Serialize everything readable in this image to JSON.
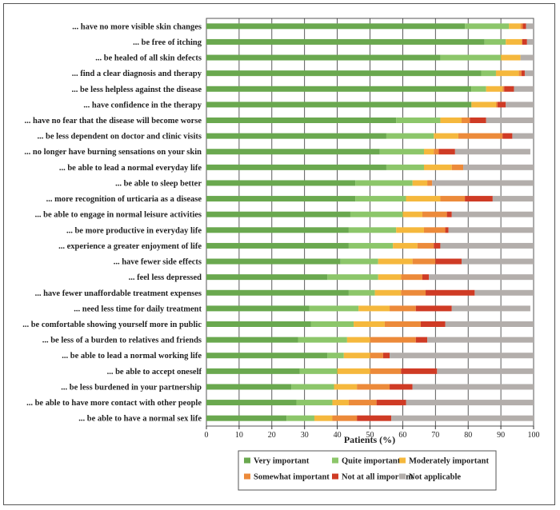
{
  "chart_data": {
    "type": "bar",
    "orientation": "horizontal",
    "stacked": true,
    "xlabel": "Patients (%)",
    "xlim": [
      0,
      100
    ],
    "xticks": [
      0,
      10,
      20,
      30,
      40,
      50,
      60,
      70,
      80,
      90,
      100
    ],
    "grid": "vertical",
    "legend_position": "bottom",
    "categories": [
      "... have no more visible skin changes",
      "... be free of itching",
      "... be healed of all skin defects",
      "... find a clear diagnosis and therapy",
      "... be less helpless against the disease",
      "... have confidence in the therapy",
      "... have no fear that the disease will become worse",
      "... be less dependent on doctor and clinic visits",
      "... no longer have burning sensations on your skin",
      "... be able to lead a normal everyday life",
      "... be able to sleep better",
      "... more recognition of urticaria as a disease",
      "... be able to engage in normal leisure activities",
      "... be more productive in everyday life",
      "... experience a greater enjoyment of life",
      "... have fewer side effects",
      "... feel less depressed",
      "... have fewer unaffordable treatment expenses",
      "... need less time for daily treatment",
      "... be comfortable showing yourself more in public",
      "... be less of a burden to relatives and friends",
      "... be able to lead a normal working life",
      "... be able to accept oneself",
      "... be less burdened in your partnership",
      "... be able to have more contact with other people",
      "... be able to have a normal sex life"
    ],
    "series": [
      {
        "name": "Very important",
        "color": "#6aa84f",
        "values": [
          79,
          85,
          71.5,
          84,
          81,
          81,
          58,
          55,
          53,
          55,
          45.5,
          45.5,
          44,
          43.5,
          43.5,
          41,
          37,
          43.5,
          31.5,
          32,
          28,
          37,
          28.5,
          26,
          27.5,
          24.5
        ]
      },
      {
        "name": "Quite important",
        "color": "#8cc66a",
        "values": [
          13.5,
          6.5,
          18.5,
          4.5,
          4.5,
          0,
          13.5,
          14.5,
          13.5,
          11.5,
          17.5,
          15.5,
          16,
          14.5,
          13.5,
          11.5,
          15.5,
          8,
          15,
          13,
          15,
          5,
          11.5,
          13,
          11,
          8.5
        ]
      },
      {
        "name": "Moderately important",
        "color": "#f5b83d",
        "values": [
          3.5,
          5,
          6,
          7,
          5,
          7.5,
          6.5,
          7.5,
          3,
          8.5,
          4.5,
          10.5,
          6,
          8.5,
          7.5,
          10.5,
          7,
          8,
          9.5,
          9.5,
          7,
          8,
          10,
          7,
          5,
          5.5
        ]
      },
      {
        "name": "Somewhat important",
        "color": "#ec8a3a",
        "values": [
          0.7,
          0,
          0,
          0.8,
          0.5,
          0.5,
          2.5,
          13.5,
          1.5,
          3.5,
          1.5,
          7.5,
          7.5,
          6.5,
          5,
          7,
          6.5,
          7.5,
          8,
          11,
          14,
          4,
          9.5,
          10,
          8.5,
          7.5
        ]
      },
      {
        "name": "Not at all important",
        "color": "#cf3b25",
        "values": [
          1,
          1.5,
          0,
          1,
          3,
          2.5,
          5,
          3,
          5,
          0,
          0,
          8.5,
          1.5,
          1,
          2,
          8,
          2,
          15,
          11,
          7.5,
          3.5,
          2,
          11,
          7,
          9,
          10.5
        ]
      },
      {
        "name": "Not applicable",
        "color": "#b3aeab",
        "values": [
          2.3,
          2,
          4,
          2.7,
          6,
          8.5,
          14.5,
          6.5,
          23,
          21.5,
          31,
          12.5,
          25,
          26,
          28.5,
          22,
          32,
          18,
          24,
          27,
          32.5,
          44,
          29.5,
          37,
          39,
          43.5
        ]
      }
    ]
  }
}
